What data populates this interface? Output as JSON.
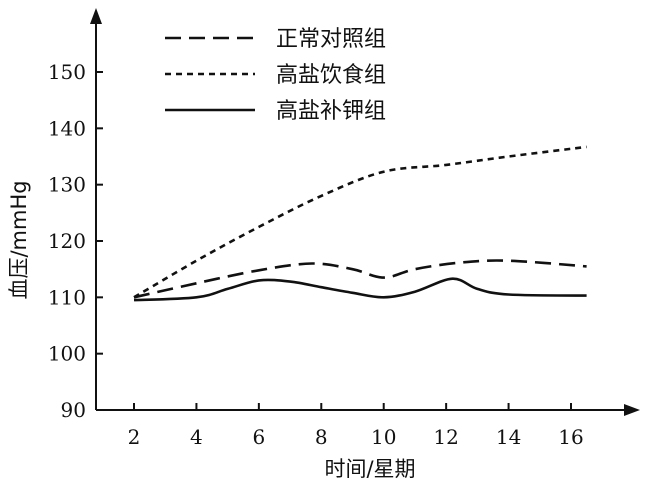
{
  "chart_data": {
    "type": "line",
    "title": "",
    "xlabel": "时间/星期",
    "ylabel": "血压/mmHg",
    "x_ticks": [
      2,
      4,
      6,
      8,
      10,
      12,
      14,
      16
    ],
    "y_ticks": [
      90,
      100,
      110,
      120,
      130,
      140,
      150
    ],
    "xlim": [
      0,
      17.5
    ],
    "ylim": [
      90,
      157
    ],
    "grid": false,
    "legend_position": "top",
    "series": [
      {
        "name": "正常对照组",
        "style": "long-dash",
        "x": [
          2,
          4,
          6,
          7.7,
          9,
          10,
          11,
          12.5,
          14,
          16.5
        ],
        "y": [
          110,
          112.5,
          114.8,
          116,
          115,
          113.5,
          115,
          116.2,
          116.5,
          115.5
        ]
      },
      {
        "name": "高盐饮食组",
        "style": "short-dash",
        "x": [
          2,
          4,
          6,
          8,
          10,
          12,
          14,
          16.5
        ],
        "y": [
          110,
          116.5,
          122.5,
          128,
          132.3,
          133.5,
          135,
          136.7
        ]
      },
      {
        "name": "高盐补钾组",
        "style": "solid",
        "x": [
          2,
          4,
          5,
          6,
          7,
          8,
          9,
          10,
          11,
          12.2,
          13,
          14,
          16.5
        ],
        "y": [
          109.5,
          110,
          111.5,
          113,
          112.8,
          111.8,
          110.8,
          110,
          111,
          113.3,
          111.5,
          110.5,
          110.3
        ]
      }
    ]
  }
}
